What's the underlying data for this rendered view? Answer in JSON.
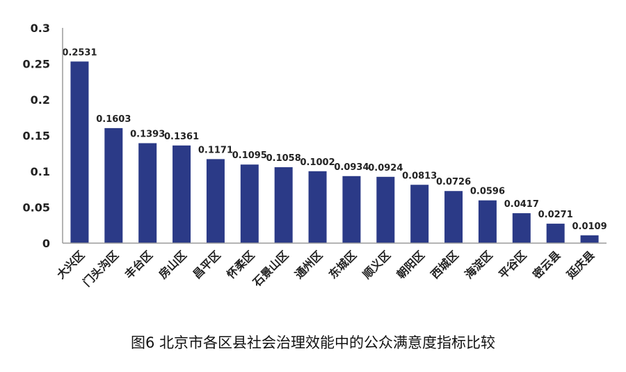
{
  "caption": "图6 北京市各区县社会治理效能中的公众满意度指标比较",
  "chart_data": {
    "type": "bar",
    "title": "",
    "xlabel": "",
    "ylabel": "",
    "ylim": [
      0,
      0.3
    ],
    "yticks": [
      "0",
      "0.05",
      "0.1",
      "0.15",
      "0.2",
      "0.25",
      "0.3"
    ],
    "grid": false,
    "legend": "none",
    "bar_color": "#2b3a87",
    "categories": [
      "大兴区",
      "门头沟区",
      "丰台区",
      "房山区",
      "昌平区",
      "怀柔区",
      "石景山区",
      "通州区",
      "东城区",
      "顺义区",
      "朝阳区",
      "西城区",
      "海淀区",
      "平谷区",
      "密云县",
      "延庆县"
    ],
    "values": [
      0.2531,
      0.1603,
      0.1393,
      0.1361,
      0.1171,
      0.1095,
      0.1058,
      0.1002,
      0.0934,
      0.0924,
      0.0813,
      0.0726,
      0.0596,
      0.0417,
      0.0271,
      0.0109
    ],
    "data_labels": [
      "0.2531",
      "0.1603",
      "0.1393",
      "0.1361",
      "0.1171",
      "0.1095",
      "0.1058",
      "0.1002",
      "0.0934",
      "0.0924",
      "0.0813",
      "0.0726",
      "0.0596",
      "0.0417",
      "0.0271",
      "0.0109"
    ]
  }
}
